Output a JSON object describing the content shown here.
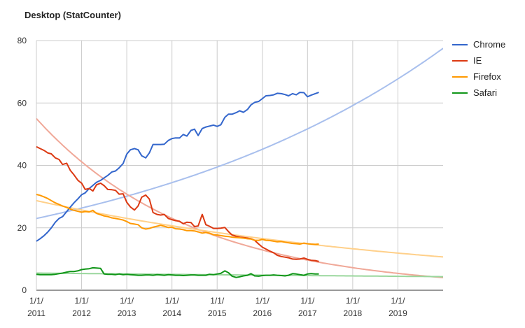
{
  "chart_data": {
    "type": "line",
    "title": "Desktop (StatCounter)",
    "xlabel": "",
    "ylabel": "",
    "ylim": [
      0,
      80
    ],
    "xlim": [
      2011.0,
      2020.0
    ],
    "y_ticks": [
      "0",
      "20",
      "40",
      "60",
      "80"
    ],
    "x_ticks": [
      {
        "line1": "1/1/",
        "line2": "2011"
      },
      {
        "line1": "1/1/",
        "line2": "2012"
      },
      {
        "line1": "1/1/",
        "line2": "2013"
      },
      {
        "line1": "1/1/",
        "line2": "2014"
      },
      {
        "line1": "1/1/",
        "line2": "2015"
      },
      {
        "line1": "1/1/",
        "line2": "2016"
      },
      {
        "line1": "1/1/",
        "line2": "2017"
      },
      {
        "line1": "1/1/",
        "line2": "2018"
      },
      {
        "line1": "1/1/",
        "line2": "2019"
      }
    ],
    "grid": true,
    "legend_position": "right",
    "series": [
      {
        "name": "Chrome",
        "color": "#3366cc",
        "x": [
          2011.0,
          2011.08,
          2011.17,
          2011.25,
          2011.33,
          2011.42,
          2011.5,
          2011.58,
          2011.67,
          2011.75,
          2011.83,
          2011.92,
          2012.0,
          2012.08,
          2012.17,
          2012.25,
          2012.33,
          2012.42,
          2012.5,
          2012.58,
          2012.67,
          2012.75,
          2012.83,
          2012.92,
          2013.0,
          2013.08,
          2013.17,
          2013.25,
          2013.33,
          2013.42,
          2013.5,
          2013.58,
          2013.67,
          2013.75,
          2013.83,
          2013.92,
          2014.0,
          2014.08,
          2014.17,
          2014.25,
          2014.33,
          2014.42,
          2014.5,
          2014.58,
          2014.67,
          2014.75,
          2014.83,
          2014.92,
          2015.0,
          2015.08,
          2015.17,
          2015.25,
          2015.33,
          2015.42,
          2015.5,
          2015.58,
          2015.67,
          2015.75,
          2015.83,
          2015.92,
          2016.0,
          2016.08,
          2016.17,
          2016.25,
          2016.33,
          2016.42,
          2016.5,
          2016.58,
          2016.67,
          2016.75,
          2016.83,
          2016.92,
          2017.0,
          2017.08,
          2017.17,
          2017.25
        ],
        "values": [
          15.7,
          16.5,
          17.5,
          18.6,
          20.0,
          21.8,
          23.0,
          23.6,
          25.2,
          26.6,
          28.0,
          29.3,
          30.6,
          31.2,
          32.6,
          33.6,
          34.6,
          35.2,
          36.0,
          36.8,
          37.9,
          38.2,
          39.2,
          40.6,
          43.6,
          45.0,
          45.4,
          45.0,
          43.1,
          42.4,
          44.0,
          46.7,
          46.7,
          46.7,
          46.8,
          48.0,
          48.6,
          48.8,
          48.8,
          49.9,
          49.4,
          51.2,
          51.6,
          49.6,
          51.8,
          52.3,
          52.6,
          52.9,
          52.5,
          53.0,
          55.4,
          56.4,
          56.4,
          56.9,
          57.5,
          57.0,
          57.9,
          59.4,
          60.2,
          60.5,
          61.4,
          62.3,
          62.4,
          62.6,
          63.1,
          63.0,
          62.7,
          62.3,
          63.0,
          62.6,
          63.4,
          63.3,
          62.0,
          62.5,
          63.0,
          63.4
        ]
      },
      {
        "name": "IE",
        "color": "#dc3912",
        "x": [
          2011.0,
          2011.08,
          2011.17,
          2011.25,
          2011.33,
          2011.42,
          2011.5,
          2011.58,
          2011.67,
          2011.75,
          2011.83,
          2011.92,
          2012.0,
          2012.08,
          2012.17,
          2012.25,
          2012.33,
          2012.42,
          2012.5,
          2012.58,
          2012.67,
          2012.75,
          2012.83,
          2012.92,
          2013.0,
          2013.08,
          2013.17,
          2013.25,
          2013.33,
          2013.42,
          2013.5,
          2013.58,
          2013.67,
          2013.75,
          2013.83,
          2013.92,
          2014.0,
          2014.08,
          2014.17,
          2014.25,
          2014.33,
          2014.42,
          2014.5,
          2014.58,
          2014.67,
          2014.75,
          2014.83,
          2014.92,
          2015.0,
          2015.08,
          2015.17,
          2015.25,
          2015.33,
          2015.42,
          2015.5,
          2015.58,
          2015.67,
          2015.75,
          2015.83,
          2015.92,
          2016.0,
          2016.08,
          2016.17,
          2016.25,
          2016.33,
          2016.42,
          2016.5,
          2016.58,
          2016.67,
          2016.75,
          2016.83,
          2016.92,
          2017.0,
          2017.08,
          2017.17,
          2017.25
        ],
        "values": [
          46.0,
          45.4,
          44.8,
          44.0,
          43.7,
          42.4,
          41.9,
          40.3,
          40.7,
          38.4,
          37.0,
          35.2,
          34.3,
          32.3,
          32.6,
          31.8,
          33.8,
          34.3,
          33.5,
          32.3,
          32.2,
          32.0,
          30.8,
          30.9,
          28.2,
          26.7,
          25.7,
          27.0,
          29.8,
          30.5,
          29.2,
          24.9,
          24.3,
          24.1,
          24.3,
          23.0,
          22.6,
          22.3,
          22.1,
          21.3,
          21.8,
          21.7,
          20.4,
          20.6,
          24.3,
          21.0,
          20.5,
          19.8,
          19.8,
          19.9,
          20.1,
          18.8,
          17.7,
          17.3,
          17.0,
          16.9,
          16.7,
          16.5,
          16.0,
          14.8,
          13.8,
          13.2,
          12.5,
          12.0,
          11.2,
          10.8,
          10.6,
          10.4,
          10.0,
          9.9,
          10.0,
          10.3,
          9.9,
          9.6,
          9.5,
          9.2
        ]
      },
      {
        "name": "Firefox",
        "color": "#ff9900",
        "x": [
          2011.0,
          2011.08,
          2011.17,
          2011.25,
          2011.33,
          2011.42,
          2011.5,
          2011.58,
          2011.67,
          2011.75,
          2011.83,
          2011.92,
          2012.0,
          2012.08,
          2012.17,
          2012.25,
          2012.33,
          2012.42,
          2012.5,
          2012.58,
          2012.67,
          2012.75,
          2012.83,
          2012.92,
          2013.0,
          2013.08,
          2013.17,
          2013.25,
          2013.33,
          2013.42,
          2013.5,
          2013.58,
          2013.67,
          2013.75,
          2013.83,
          2013.92,
          2014.0,
          2014.08,
          2014.17,
          2014.25,
          2014.33,
          2014.42,
          2014.5,
          2014.58,
          2014.67,
          2014.75,
          2014.83,
          2014.92,
          2015.0,
          2015.08,
          2015.17,
          2015.25,
          2015.33,
          2015.42,
          2015.5,
          2015.58,
          2015.67,
          2015.75,
          2015.83,
          2015.92,
          2016.0,
          2016.08,
          2016.17,
          2016.25,
          2016.33,
          2016.42,
          2016.5,
          2016.58,
          2016.67,
          2016.75,
          2016.83,
          2016.92,
          2017.0,
          2017.08,
          2017.17,
          2017.25
        ],
        "values": [
          30.7,
          30.4,
          29.9,
          29.4,
          28.7,
          28.0,
          27.5,
          27.0,
          26.5,
          26.0,
          25.6,
          25.3,
          25.0,
          25.2,
          25.1,
          25.6,
          24.6,
          24.2,
          23.8,
          23.6,
          23.2,
          23.0,
          22.8,
          22.5,
          22.0,
          21.4,
          21.2,
          21.0,
          20.0,
          19.6,
          19.8,
          20.2,
          20.5,
          20.8,
          20.5,
          20.1,
          20.2,
          19.7,
          19.6,
          19.4,
          19.1,
          19.1,
          19.0,
          18.7,
          18.3,
          18.5,
          18.3,
          17.8,
          17.7,
          17.5,
          17.3,
          17.2,
          17.0,
          16.9,
          16.8,
          16.7,
          16.5,
          16.4,
          16.0,
          16.0,
          16.3,
          16.0,
          15.9,
          15.7,
          15.5,
          15.6,
          15.4,
          15.2,
          15.0,
          14.9,
          14.8,
          15.1,
          14.9,
          14.8,
          14.7,
          14.8
        ]
      },
      {
        "name": "Safari",
        "color": "#109618",
        "x": [
          2011.0,
          2011.08,
          2011.17,
          2011.25,
          2011.33,
          2011.42,
          2011.5,
          2011.58,
          2011.67,
          2011.75,
          2011.83,
          2011.92,
          2012.0,
          2012.08,
          2012.17,
          2012.25,
          2012.33,
          2012.42,
          2012.5,
          2012.58,
          2012.67,
          2012.75,
          2012.83,
          2012.92,
          2013.0,
          2013.08,
          2013.17,
          2013.25,
          2013.33,
          2013.42,
          2013.5,
          2013.58,
          2013.67,
          2013.75,
          2013.83,
          2013.92,
          2014.0,
          2014.08,
          2014.17,
          2014.25,
          2014.33,
          2014.42,
          2014.5,
          2014.58,
          2014.67,
          2014.75,
          2014.83,
          2014.92,
          2015.0,
          2015.08,
          2015.17,
          2015.25,
          2015.33,
          2015.42,
          2015.5,
          2015.58,
          2015.67,
          2015.75,
          2015.83,
          2015.92,
          2016.0,
          2016.08,
          2016.17,
          2016.25,
          2016.33,
          2016.42,
          2016.5,
          2016.58,
          2016.67,
          2016.75,
          2016.83,
          2016.92,
          2017.0,
          2017.08,
          2017.17,
          2017.25
        ],
        "values": [
          5.1,
          5.0,
          5.0,
          5.0,
          5.0,
          5.1,
          5.3,
          5.5,
          5.8,
          6.0,
          6.0,
          6.2,
          6.6,
          6.8,
          6.9,
          7.2,
          7.1,
          7.0,
          5.2,
          5.1,
          5.1,
          5.0,
          5.2,
          5.0,
          5.1,
          5.0,
          4.9,
          4.8,
          4.8,
          4.9,
          4.9,
          4.8,
          5.0,
          4.9,
          4.8,
          5.0,
          4.9,
          4.8,
          4.8,
          4.7,
          4.8,
          4.9,
          4.9,
          4.8,
          4.8,
          4.8,
          5.1,
          5.0,
          5.2,
          5.4,
          6.2,
          5.6,
          4.5,
          4.1,
          4.3,
          4.6,
          4.8,
          5.3,
          4.6,
          4.5,
          4.7,
          4.8,
          4.8,
          4.9,
          4.8,
          4.7,
          4.6,
          4.8,
          5.3,
          5.2,
          5.0,
          4.8,
          5.2,
          5.3,
          5.2,
          5.2
        ]
      }
    ],
    "trendlines": [
      {
        "series": "Chrome",
        "color": "#a8bfed",
        "type": "exponential",
        "a": 23.0,
        "b": 0.135
      },
      {
        "series": "IE",
        "color": "#f0a898",
        "type": "exponential",
        "a": 55.0,
        "b": -0.29
      },
      {
        "series": "Firefox",
        "color": "#ffd08a",
        "type": "exponential",
        "a": 28.7,
        "b": -0.11
      },
      {
        "series": "Safari",
        "color": "#9ad79d",
        "type": "exponential",
        "a": 5.5,
        "b": -0.026
      }
    ]
  }
}
